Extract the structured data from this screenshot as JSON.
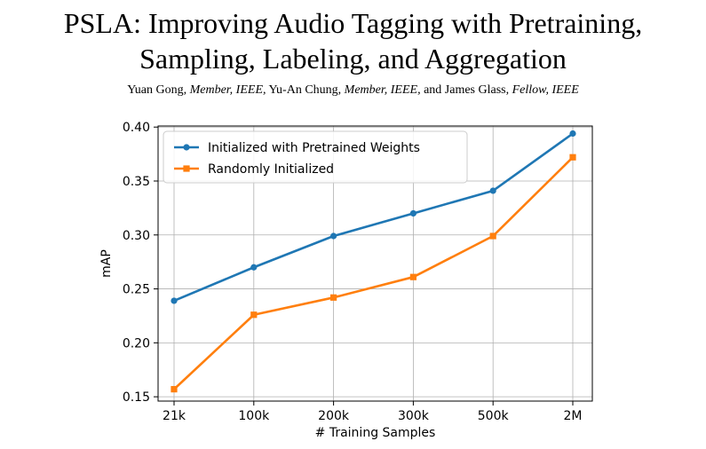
{
  "paper": {
    "title_line1": "PSLA: Improving Audio Tagging with Pretraining,",
    "title_line2": "Sampling, Labeling, and Aggregation",
    "authors": [
      {
        "name": "Yuan Gong,",
        "affiliation": "Member, IEEE,"
      },
      {
        "name": "Yu-An Chung,",
        "affiliation": "Member, IEEE,"
      },
      {
        "name": "and James Glass,",
        "affiliation": "Fellow, IEEE"
      }
    ]
  },
  "chart_data": {
    "type": "line",
    "categories": [
      "21k",
      "100k",
      "200k",
      "300k",
      "500k",
      "2M"
    ],
    "series": [
      {
        "name": "Initialized with Pretrained Weights",
        "color": "#1f77b4",
        "marker": "circle",
        "values": [
          0.239,
          0.27,
          0.299,
          0.32,
          0.341,
          0.394
        ]
      },
      {
        "name": "Randomly Initialized",
        "color": "#ff7f0e",
        "marker": "square",
        "values": [
          0.157,
          0.226,
          0.242,
          0.261,
          0.299,
          0.372
        ]
      }
    ],
    "xlabel": "# Training Samples",
    "ylabel": "mAP",
    "ylim": [
      0.146,
      0.401
    ],
    "yticks": [
      0.15,
      0.2,
      0.25,
      0.3,
      0.35,
      0.4
    ],
    "ytick_labels": [
      "0.15",
      "0.20",
      "0.25",
      "0.30",
      "0.35",
      "0.40"
    ],
    "grid": true,
    "legend_position": "top-left"
  }
}
